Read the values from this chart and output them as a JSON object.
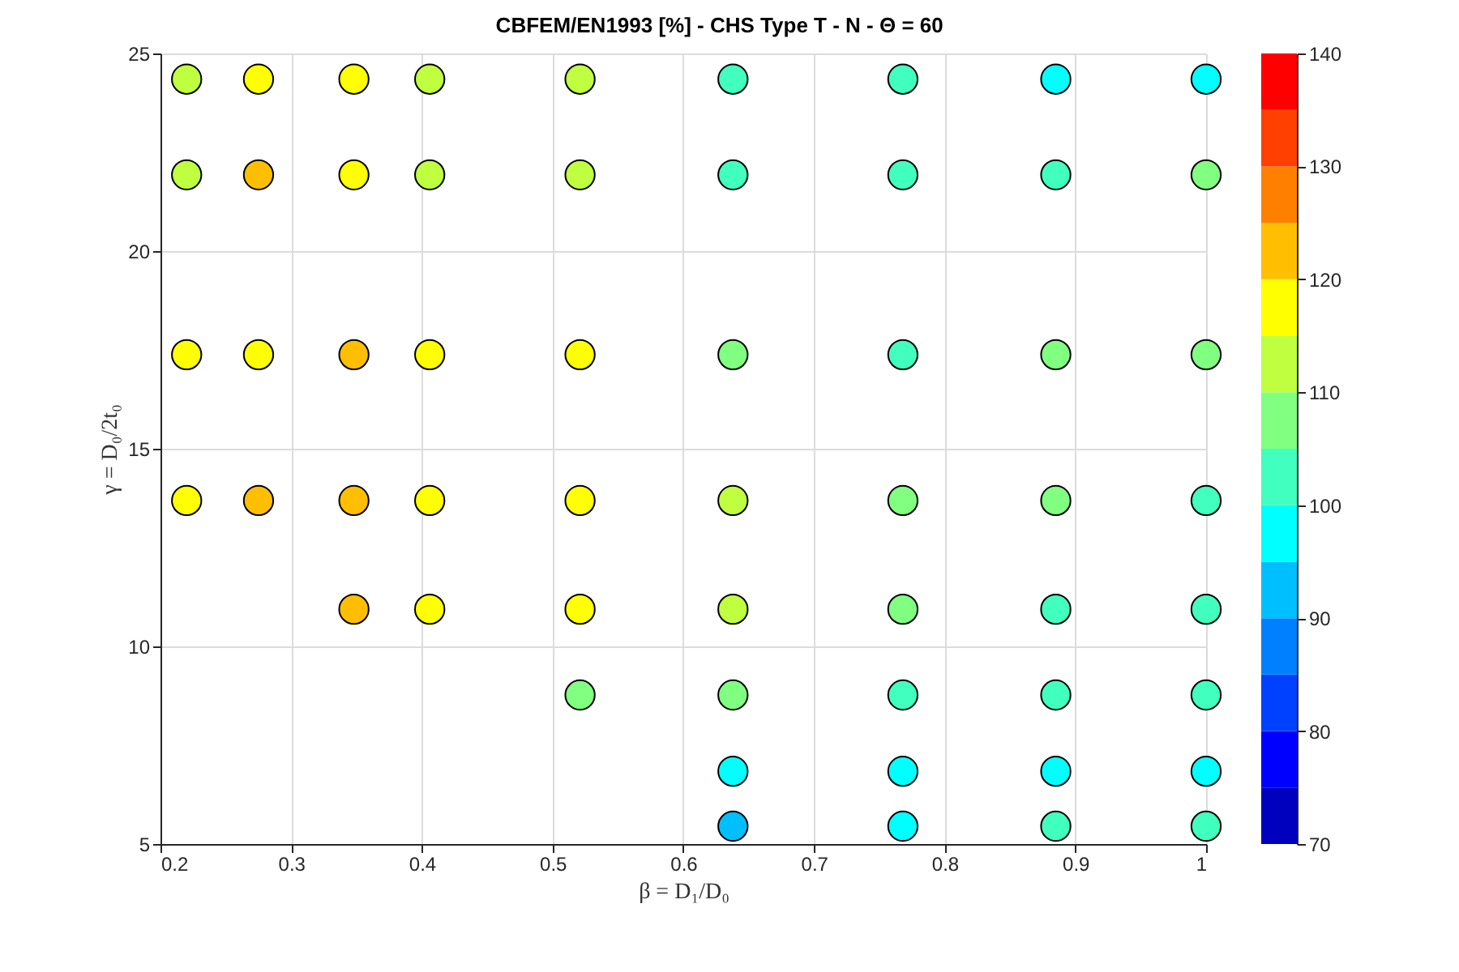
{
  "chart_data": {
    "type": "scatter",
    "title": "CBFEM/EN1993 [%] - CHS Type T - N - Θ = 60",
    "xlabel": "β = D₁/D₀",
    "ylabel": "γ = D₀/2t₀",
    "x": [
      0.22,
      0.275,
      0.348,
      0.406,
      0.521,
      0.638,
      0.768,
      0.885,
      1.0,
      0.22,
      0.275,
      0.348,
      0.406,
      0.521,
      0.638,
      0.768,
      0.885,
      1.0,
      0.22,
      0.275,
      0.348,
      0.406,
      0.521,
      0.638,
      0.768,
      0.885,
      1.0,
      0.22,
      0.275,
      0.348,
      0.406,
      0.521,
      0.638,
      0.768,
      0.885,
      1.0,
      0.348,
      0.406,
      0.521,
      0.638,
      0.768,
      0.885,
      1.0,
      0.521,
      0.638,
      0.768,
      0.885,
      1.0,
      0.638,
      0.768,
      0.885,
      1.0,
      0.638,
      0.768,
      0.885,
      1.0
    ],
    "values": [
      24.35,
      24.35,
      24.35,
      24.35,
      24.35,
      24.35,
      24.35,
      24.35,
      24.35,
      21.93,
      21.93,
      21.93,
      21.93,
      21.93,
      21.93,
      21.93,
      21.93,
      21.93,
      17.38,
      17.38,
      17.38,
      17.38,
      17.38,
      17.38,
      17.38,
      17.38,
      17.38,
      13.69,
      13.69,
      13.69,
      13.69,
      13.69,
      13.69,
      13.69,
      13.69,
      13.69,
      10.94,
      10.94,
      10.94,
      10.94,
      10.94,
      10.94,
      10.94,
      8.77,
      8.77,
      8.77,
      8.77,
      8.77,
      6.84,
      6.84,
      6.84,
      6.84,
      5.45,
      5.45,
      5.45,
      5.45
    ],
    "cvalues": [
      112.5,
      117.5,
      117.5,
      112.5,
      112.5,
      102.5,
      102.5,
      97.5,
      97.5,
      112.5,
      122.5,
      117.5,
      112.5,
      112.5,
      102.5,
      102.5,
      102.5,
      107.5,
      117.5,
      117.5,
      122.5,
      117.5,
      117.5,
      107.5,
      102.5,
      107.5,
      107.5,
      117.5,
      122.5,
      122.5,
      117.5,
      117.5,
      112.5,
      107.5,
      107.5,
      102.5,
      122.5,
      117.5,
      117.5,
      112.5,
      107.5,
      102.5,
      102.5,
      107.5,
      107.5,
      102.5,
      102.5,
      102.5,
      97.5,
      97.5,
      97.5,
      97.5,
      92.5,
      97.5,
      102.5,
      102.5
    ],
    "xlim": [
      0.2,
      1.0
    ],
    "xticks": [
      0.2,
      0.3,
      0.4,
      0.5,
      0.6,
      0.7,
      0.8,
      0.9,
      {
        "value": 1.0,
        "label": "1"
      }
    ],
    "ylim": [
      5,
      25
    ],
    "yticks": [
      5,
      10,
      15,
      20,
      25
    ],
    "clim": [
      70,
      140
    ],
    "cticks": [
      70,
      80,
      90,
      100,
      110,
      120,
      130,
      140
    ],
    "grid": true,
    "marker": "circle"
  }
}
